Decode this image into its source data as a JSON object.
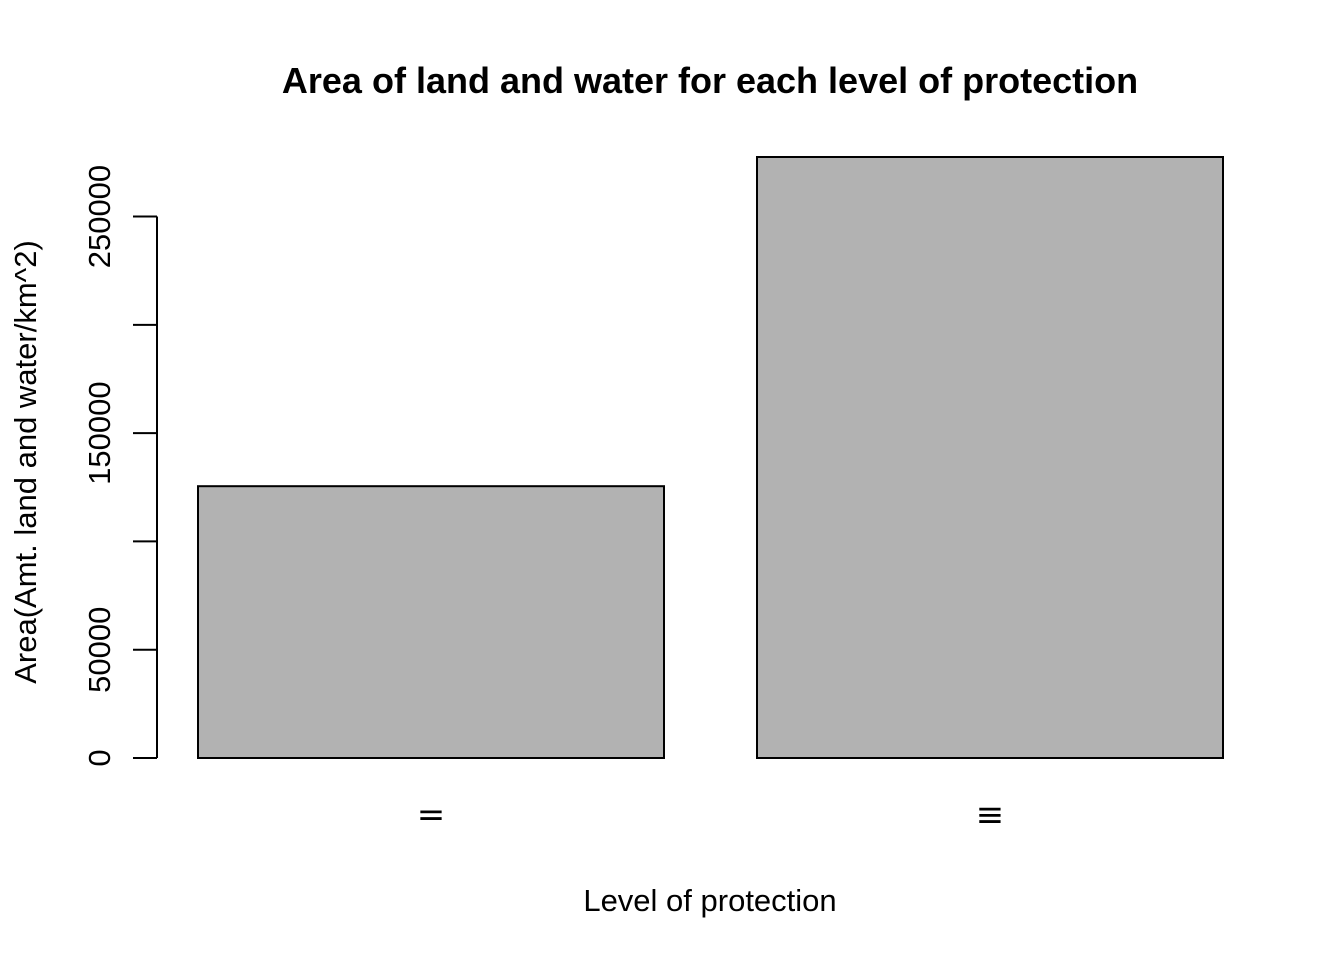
{
  "chart_data": {
    "type": "bar",
    "title": "Area of land and water for each level of protection",
    "xlabel": "Level of protection",
    "ylabel": "Area(Amt. land and water/km^2)",
    "categories": [
      "=",
      "≡"
    ],
    "values": [
      125500,
      277500
    ],
    "ylim": [
      0,
      277500
    ],
    "yticks": [
      0,
      50000,
      100000,
      150000,
      200000,
      250000
    ],
    "ytick_labels": [
      "0",
      "50000",
      "",
      "150000",
      "",
      "250000"
    ],
    "bar_color": "#b2b2b2",
    "grid": false,
    "legend": "none"
  }
}
